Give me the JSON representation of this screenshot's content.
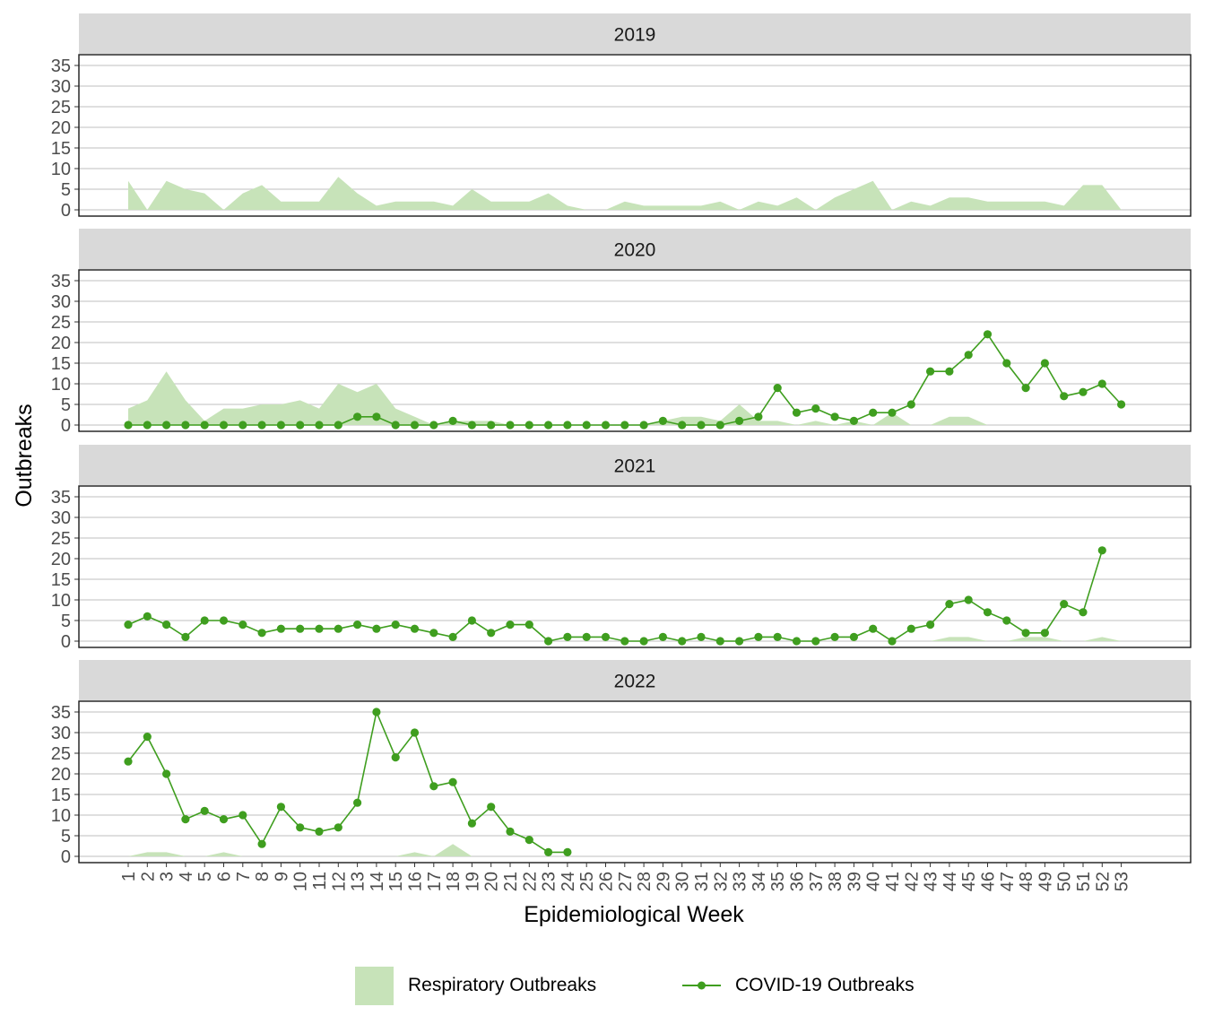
{
  "chart_data": {
    "type": "area",
    "xlabel": "Epidemiological Week",
    "ylabel": "Outbreaks",
    "y_ticks": [
      0,
      5,
      10,
      15,
      20,
      25,
      30,
      35
    ],
    "ylim": [
      0,
      35
    ],
    "x_ticks": [
      "1",
      "2",
      "3",
      "4",
      "5",
      "6",
      "7",
      "8",
      "9",
      "10",
      "11",
      "12",
      "13",
      "14",
      "15",
      "16",
      "17",
      "18",
      "19",
      "20",
      "21",
      "22",
      "23",
      "24",
      "25",
      "26",
      "27",
      "28",
      "29",
      "30",
      "31",
      "32",
      "33",
      "34",
      "35",
      "36",
      "37",
      "38",
      "39",
      "40",
      "41",
      "42",
      "43",
      "44",
      "45",
      "46",
      "47",
      "48",
      "49",
      "50",
      "51",
      "52",
      "53"
    ],
    "grid": true,
    "legend_position": "bottom",
    "legend": {
      "respiratory": "Respiratory Outbreaks",
      "covid": "COVID-19 Outbreaks"
    },
    "colors": {
      "respiratory": "#c7e3b9",
      "covid": "#3f9e1f",
      "panel_strip": "#d9d9d9",
      "grid": "#cccccc"
    },
    "panels": [
      {
        "label": "2019",
        "respiratory": [
          7,
          0,
          7,
          5,
          4,
          0,
          4,
          6,
          2,
          2,
          2,
          8,
          4,
          1,
          2,
          2,
          2,
          1,
          5,
          2,
          2,
          2,
          4,
          1,
          0,
          0,
          2,
          1,
          1,
          1,
          1,
          2,
          0,
          2,
          1,
          3,
          0,
          3,
          5,
          7,
          0,
          2,
          1,
          3,
          3,
          2,
          2,
          2,
          2,
          1,
          6,
          6,
          0
        ],
        "covid": []
      },
      {
        "label": "2020",
        "respiratory": [
          4,
          6,
          13,
          6,
          1,
          4,
          4,
          5,
          5,
          6,
          4,
          10,
          8,
          10,
          4,
          2,
          0,
          1,
          1,
          1,
          0,
          0,
          0,
          0,
          0,
          0,
          0,
          0,
          1,
          2,
          2,
          1,
          5,
          1,
          1,
          0,
          1,
          0,
          1,
          0,
          3,
          0,
          0,
          2,
          2,
          0,
          0,
          0,
          0,
          0,
          0,
          0,
          0
        ],
        "covid": [
          0,
          0,
          0,
          0,
          0,
          0,
          0,
          0,
          0,
          0,
          0,
          0,
          2,
          2,
          0,
          0,
          0,
          1,
          0,
          0,
          0,
          0,
          0,
          0,
          0,
          0,
          0,
          0,
          1,
          0,
          0,
          0,
          1,
          2,
          9,
          3,
          4,
          2,
          1,
          3,
          3,
          5,
          13,
          13,
          17,
          22,
          15,
          9,
          15,
          7,
          8,
          10,
          5
        ]
      },
      {
        "label": "2021",
        "respiratory": [
          0,
          0,
          0,
          0,
          0,
          0,
          0,
          0,
          0,
          0,
          0,
          0,
          0,
          0,
          0,
          0,
          0,
          0,
          0,
          0,
          0,
          0,
          0,
          0,
          0,
          0,
          0,
          0,
          0,
          0,
          0,
          0,
          0,
          0,
          0,
          0,
          0,
          0,
          0,
          0,
          0,
          0,
          0,
          1,
          1,
          0,
          0,
          1,
          1,
          0,
          0,
          1,
          0
        ],
        "covid": [
          4,
          6,
          4,
          1,
          5,
          5,
          4,
          2,
          3,
          3,
          3,
          3,
          4,
          3,
          4,
          3,
          2,
          1,
          5,
          2,
          4,
          4,
          0,
          1,
          1,
          1,
          0,
          0,
          1,
          0,
          1,
          0,
          0,
          1,
          1,
          0,
          0,
          1,
          1,
          3,
          0,
          3,
          4,
          9,
          10,
          7,
          5,
          2,
          2,
          9,
          7,
          22
        ]
      },
      {
        "label": "2022",
        "respiratory": [
          0,
          1,
          1,
          0,
          0,
          1,
          0,
          0,
          0,
          0,
          0,
          0,
          0,
          0,
          0,
          1,
          0,
          3,
          0,
          0,
          0,
          0,
          0,
          0,
          0,
          0,
          0,
          0,
          0,
          0,
          0,
          0,
          0,
          0,
          0,
          0,
          0,
          0,
          0,
          0,
          0,
          0,
          0,
          0,
          0,
          0,
          0,
          0,
          0,
          0,
          0,
          0,
          0
        ],
        "covid": [
          23,
          29,
          20,
          9,
          11,
          9,
          10,
          3,
          12,
          7,
          6,
          7,
          13,
          35,
          24,
          30,
          17,
          18,
          8,
          12,
          6,
          4,
          1,
          1
        ]
      }
    ]
  }
}
